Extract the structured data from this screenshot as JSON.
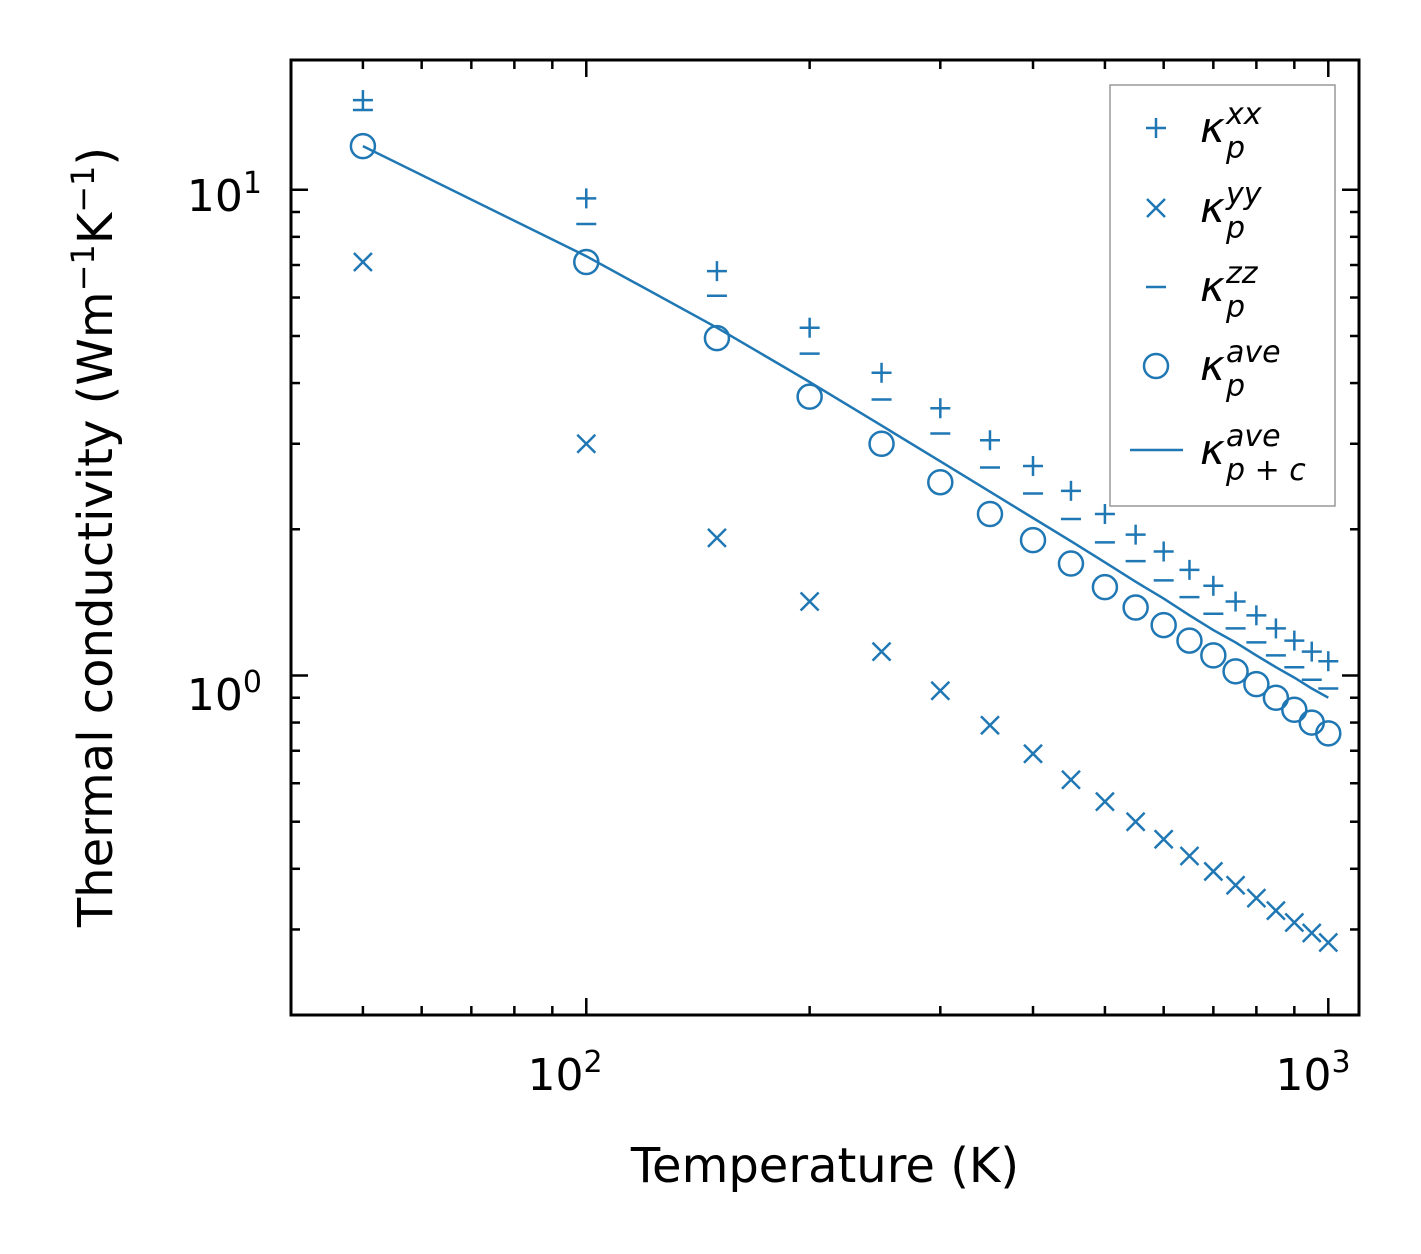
{
  "chart_data": {
    "type": "scatter",
    "title": "",
    "xlabel": "Temperature (K)",
    "ylabel_main": "Thermal conductivity (Wm",
    "ylabel_unit_exp1": "−1",
    "ylabel_unit_mid": "K",
    "ylabel_unit_exp2": "−1",
    "ylabel_close": ")",
    "xscale": "log",
    "yscale": "log",
    "xlim": [
      40,
      1100
    ],
    "ylim": [
      0.2,
      18.5
    ],
    "xticks": [
      {
        "base": "10",
        "exp": "2",
        "value": 100
      },
      {
        "base": "10",
        "exp": "3",
        "value": 1000
      }
    ],
    "yticks": [
      {
        "base": "10",
        "exp": "0",
        "value": 1
      },
      {
        "base": "10",
        "exp": "1",
        "value": 10
      }
    ],
    "color": "#1f77b4",
    "x": [
      50,
      100,
      150,
      200,
      250,
      300,
      350,
      400,
      450,
      500,
      550,
      600,
      650,
      700,
      750,
      800,
      850,
      900,
      950,
      1000
    ],
    "series": [
      {
        "name": "kxx",
        "marker": "plus",
        "values": [
          15.3,
          9.6,
          6.8,
          5.2,
          4.2,
          3.55,
          3.05,
          2.7,
          2.4,
          2.15,
          1.95,
          1.8,
          1.65,
          1.53,
          1.42,
          1.33,
          1.25,
          1.18,
          1.12,
          1.07
        ]
      },
      {
        "name": "kyy",
        "marker": "x",
        "values": [
          7.1,
          3.0,
          1.92,
          1.42,
          1.12,
          0.93,
          0.79,
          0.69,
          0.61,
          0.55,
          0.5,
          0.46,
          0.425,
          0.395,
          0.37,
          0.348,
          0.328,
          0.31,
          0.295,
          0.282
        ]
      },
      {
        "name": "kzz",
        "marker": "minus",
        "values": [
          14.6,
          8.5,
          6.05,
          4.6,
          3.7,
          3.15,
          2.68,
          2.37,
          2.1,
          1.88,
          1.72,
          1.57,
          1.45,
          1.34,
          1.25,
          1.17,
          1.1,
          1.04,
          0.98,
          0.94
        ]
      },
      {
        "name": "kave",
        "marker": "circle",
        "values": [
          12.3,
          7.1,
          4.95,
          3.75,
          3.0,
          2.5,
          2.15,
          1.9,
          1.7,
          1.52,
          1.38,
          1.27,
          1.18,
          1.1,
          1.02,
          0.96,
          0.9,
          0.85,
          0.8,
          0.76
        ]
      },
      {
        "name": "kave_pc",
        "marker": "line",
        "values": [
          12.3,
          7.3,
          5.2,
          4.02,
          3.27,
          2.76,
          2.39,
          2.11,
          1.89,
          1.71,
          1.56,
          1.44,
          1.33,
          1.24,
          1.17,
          1.1,
          1.04,
          0.99,
          0.94,
          0.9
        ]
      }
    ],
    "legend": {
      "position": "top-right",
      "entries": [
        {
          "marker": "plus",
          "base": "κ",
          "sup": "xx",
          "sub": "p"
        },
        {
          "marker": "x",
          "base": "κ",
          "sup": "yy",
          "sub": "p"
        },
        {
          "marker": "minus",
          "base": "κ",
          "sup": "zz",
          "sub": "p"
        },
        {
          "marker": "circle",
          "base": "κ",
          "sup": "ave",
          "sub": "p"
        },
        {
          "marker": "line",
          "base": "κ",
          "sup": "ave",
          "sub": "p + c"
        }
      ]
    }
  }
}
